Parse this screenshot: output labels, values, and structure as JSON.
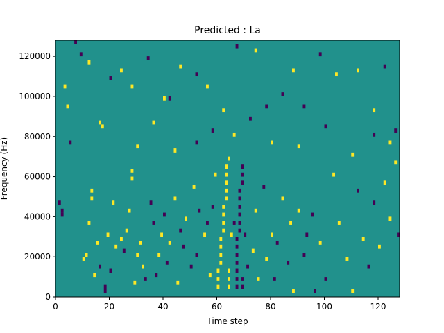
{
  "chart_data": {
    "type": "heatmap",
    "title": "Predicted : La",
    "xlabel": "Time step",
    "ylabel": "Frequency (Hz)",
    "xlim": [
      0,
      128
    ],
    "ylim": [
      0,
      128000
    ],
    "grid": false,
    "x_ticks": [
      0,
      20,
      40,
      60,
      80,
      100,
      120
    ],
    "y_ticks": [
      0,
      20000,
      40000,
      60000,
      80000,
      100000,
      120000
    ],
    "x_tick_labels": [
      "0",
      "20",
      "40",
      "60",
      "80",
      "100",
      "120"
    ],
    "y_tick_labels": [
      "0",
      "20000",
      "40000",
      "60000",
      "80000",
      "100000",
      "120000"
    ],
    "colormap": {
      "background": "#21918c",
      "high": "#fde725",
      "low": "#440154"
    },
    "frequency_bin_hz": 2000,
    "cells": [
      {
        "t": 1,
        "f": 46000,
        "v": "low"
      },
      {
        "t": 2,
        "f": 42000,
        "v": "low"
      },
      {
        "t": 2,
        "f": 40000,
        "v": "low"
      },
      {
        "t": 3,
        "f": 104000,
        "v": "high"
      },
      {
        "t": 4,
        "f": 94000,
        "v": "high"
      },
      {
        "t": 5,
        "f": 76000,
        "v": "low"
      },
      {
        "t": 7,
        "f": 126000,
        "v": "low"
      },
      {
        "t": 10,
        "f": 18000,
        "v": "high"
      },
      {
        "t": 11,
        "f": 20000,
        "v": "high"
      },
      {
        "t": 12,
        "f": 36000,
        "v": "high"
      },
      {
        "t": 13,
        "f": 52000,
        "v": "high"
      },
      {
        "t": 13,
        "f": 48000,
        "v": "high"
      },
      {
        "t": 14,
        "f": 10000,
        "v": "high"
      },
      {
        "t": 15,
        "f": 26000,
        "v": "high"
      },
      {
        "t": 16,
        "f": 14000,
        "v": "low"
      },
      {
        "t": 17,
        "f": 84000,
        "v": "high"
      },
      {
        "t": 18,
        "f": 2000,
        "v": "low"
      },
      {
        "t": 18,
        "f": 4000,
        "v": "low"
      },
      {
        "t": 19,
        "f": 30000,
        "v": "high"
      },
      {
        "t": 20,
        "f": 12000,
        "v": "low"
      },
      {
        "t": 21,
        "f": 46000,
        "v": "high"
      },
      {
        "t": 22,
        "f": 24000,
        "v": "high"
      },
      {
        "t": 24,
        "f": 28000,
        "v": "high"
      },
      {
        "t": 25,
        "f": 22000,
        "v": "low"
      },
      {
        "t": 26,
        "f": 32000,
        "v": "high"
      },
      {
        "t": 27,
        "f": 42000,
        "v": "high"
      },
      {
        "t": 28,
        "f": 58000,
        "v": "high"
      },
      {
        "t": 28,
        "f": 62000,
        "v": "high"
      },
      {
        "t": 29,
        "f": 6000,
        "v": "high"
      },
      {
        "t": 30,
        "f": 20000,
        "v": "high"
      },
      {
        "t": 31,
        "f": 26000,
        "v": "high"
      },
      {
        "t": 32,
        "f": 14000,
        "v": "high"
      },
      {
        "t": 33,
        "f": 8000,
        "v": "low"
      },
      {
        "t": 35,
        "f": 46000,
        "v": "low"
      },
      {
        "t": 36,
        "f": 36000,
        "v": "low"
      },
      {
        "t": 37,
        "f": 10000,
        "v": "low"
      },
      {
        "t": 38,
        "f": 20000,
        "v": "high"
      },
      {
        "t": 39,
        "f": 30000,
        "v": "high"
      },
      {
        "t": 40,
        "f": 40000,
        "v": "low"
      },
      {
        "t": 41,
        "f": 16000,
        "v": "low"
      },
      {
        "t": 42,
        "f": 26000,
        "v": "high"
      },
      {
        "t": 44,
        "f": 48000,
        "v": "high"
      },
      {
        "t": 45,
        "f": 6000,
        "v": "high"
      },
      {
        "t": 46,
        "f": 32000,
        "v": "low"
      },
      {
        "t": 47,
        "f": 24000,
        "v": "low"
      },
      {
        "t": 48,
        "f": 38000,
        "v": "high"
      },
      {
        "t": 50,
        "f": 14000,
        "v": "low"
      },
      {
        "t": 51,
        "f": 54000,
        "v": "high"
      },
      {
        "t": 52,
        "f": 20000,
        "v": "low"
      },
      {
        "t": 53,
        "f": 42000,
        "v": "low"
      },
      {
        "t": 55,
        "f": 30000,
        "v": "high"
      },
      {
        "t": 56,
        "f": 36000,
        "v": "low"
      },
      {
        "t": 57,
        "f": 10000,
        "v": "high"
      },
      {
        "t": 58,
        "f": 44000,
        "v": "low"
      },
      {
        "t": 59,
        "f": 60000,
        "v": "high"
      },
      {
        "t": 60,
        "f": 4000,
        "v": "high"
      },
      {
        "t": 60,
        "f": 8000,
        "v": "high"
      },
      {
        "t": 60,
        "f": 12000,
        "v": "high"
      },
      {
        "t": 61,
        "f": 16000,
        "v": "high"
      },
      {
        "t": 61,
        "f": 20000,
        "v": "high"
      },
      {
        "t": 61,
        "f": 24000,
        "v": "high"
      },
      {
        "t": 61,
        "f": 28000,
        "v": "high"
      },
      {
        "t": 62,
        "f": 32000,
        "v": "high"
      },
      {
        "t": 62,
        "f": 36000,
        "v": "high"
      },
      {
        "t": 62,
        "f": 40000,
        "v": "high"
      },
      {
        "t": 62,
        "f": 44000,
        "v": "high"
      },
      {
        "t": 63,
        "f": 48000,
        "v": "high"
      },
      {
        "t": 63,
        "f": 52000,
        "v": "high"
      },
      {
        "t": 63,
        "f": 56000,
        "v": "high"
      },
      {
        "t": 63,
        "f": 60000,
        "v": "high"
      },
      {
        "t": 63,
        "f": 64000,
        "v": "high"
      },
      {
        "t": 64,
        "f": 68000,
        "v": "high"
      },
      {
        "t": 64,
        "f": 4000,
        "v": "high"
      },
      {
        "t": 64,
        "f": 8000,
        "v": "high"
      },
      {
        "t": 64,
        "f": 12000,
        "v": "high"
      },
      {
        "t": 65,
        "f": 30000,
        "v": "high"
      },
      {
        "t": 66,
        "f": 36000,
        "v": "low"
      },
      {
        "t": 67,
        "f": 4000,
        "v": "low"
      },
      {
        "t": 67,
        "f": 8000,
        "v": "low"
      },
      {
        "t": 67,
        "f": 12000,
        "v": "low"
      },
      {
        "t": 67,
        "f": 16000,
        "v": "low"
      },
      {
        "t": 67,
        "f": 20000,
        "v": "low"
      },
      {
        "t": 67,
        "f": 24000,
        "v": "low"
      },
      {
        "t": 67,
        "f": 28000,
        "v": "low"
      },
      {
        "t": 68,
        "f": 32000,
        "v": "low"
      },
      {
        "t": 68,
        "f": 36000,
        "v": "low"
      },
      {
        "t": 68,
        "f": 40000,
        "v": "low"
      },
      {
        "t": 68,
        "f": 44000,
        "v": "low"
      },
      {
        "t": 68,
        "f": 48000,
        "v": "low"
      },
      {
        "t": 68,
        "f": 52000,
        "v": "low"
      },
      {
        "t": 69,
        "f": 56000,
        "v": "low"
      },
      {
        "t": 69,
        "f": 60000,
        "v": "low"
      },
      {
        "t": 69,
        "f": 64000,
        "v": "low"
      },
      {
        "t": 69,
        "f": 4000,
        "v": "low"
      },
      {
        "t": 69,
        "f": 8000,
        "v": "low"
      },
      {
        "t": 70,
        "f": 30000,
        "v": "low"
      },
      {
        "t": 71,
        "f": 14000,
        "v": "low"
      },
      {
        "t": 73,
        "f": 22000,
        "v": "high"
      },
      {
        "t": 74,
        "f": 42000,
        "v": "high"
      },
      {
        "t": 75,
        "f": 8000,
        "v": "high"
      },
      {
        "t": 77,
        "f": 54000,
        "v": "low"
      },
      {
        "t": 78,
        "f": 18000,
        "v": "high"
      },
      {
        "t": 80,
        "f": 30000,
        "v": "high"
      },
      {
        "t": 81,
        "f": 8000,
        "v": "low"
      },
      {
        "t": 82,
        "f": 26000,
        "v": "low"
      },
      {
        "t": 84,
        "f": 48000,
        "v": "high"
      },
      {
        "t": 86,
        "f": 16000,
        "v": "low"
      },
      {
        "t": 87,
        "f": 36000,
        "v": "high"
      },
      {
        "t": 88,
        "f": 2000,
        "v": "high"
      },
      {
        "t": 90,
        "f": 42000,
        "v": "high"
      },
      {
        "t": 92,
        "f": 20000,
        "v": "low"
      },
      {
        "t": 93,
        "f": 30000,
        "v": "low"
      },
      {
        "t": 95,
        "f": 40000,
        "v": "low"
      },
      {
        "t": 96,
        "f": 2000,
        "v": "low"
      },
      {
        "t": 98,
        "f": 26000,
        "v": "high"
      },
      {
        "t": 100,
        "f": 8000,
        "v": "low"
      },
      {
        "t": 103,
        "f": 60000,
        "v": "high"
      },
      {
        "t": 105,
        "f": 36000,
        "v": "high"
      },
      {
        "t": 108,
        "f": 18000,
        "v": "high"
      },
      {
        "t": 110,
        "f": 2000,
        "v": "high"
      },
      {
        "t": 112,
        "f": 52000,
        "v": "low"
      },
      {
        "t": 114,
        "f": 28000,
        "v": "high"
      },
      {
        "t": 116,
        "f": 14000,
        "v": "low"
      },
      {
        "t": 118,
        "f": 46000,
        "v": "low"
      },
      {
        "t": 120,
        "f": 24000,
        "v": "high"
      },
      {
        "t": 122,
        "f": 56000,
        "v": "high"
      },
      {
        "t": 124,
        "f": 38000,
        "v": "high"
      },
      {
        "t": 126,
        "f": 66000,
        "v": "high"
      },
      {
        "t": 127,
        "f": 30000,
        "v": "low"
      },
      {
        "t": 9,
        "f": 120000,
        "v": "low"
      },
      {
        "t": 12,
        "f": 116000,
        "v": "high"
      },
      {
        "t": 20,
        "f": 108000,
        "v": "low"
      },
      {
        "t": 24,
        "f": 112000,
        "v": "high"
      },
      {
        "t": 28,
        "f": 104000,
        "v": "high"
      },
      {
        "t": 34,
        "f": 118000,
        "v": "low"
      },
      {
        "t": 40,
        "f": 98000,
        "v": "high"
      },
      {
        "t": 42,
        "f": 98000,
        "v": "low"
      },
      {
        "t": 46,
        "f": 114000,
        "v": "high"
      },
      {
        "t": 52,
        "f": 110000,
        "v": "low"
      },
      {
        "t": 56,
        "f": 104000,
        "v": "high"
      },
      {
        "t": 62,
        "f": 92000,
        "v": "high"
      },
      {
        "t": 67,
        "f": 124000,
        "v": "low"
      },
      {
        "t": 74,
        "f": 122000,
        "v": "high"
      },
      {
        "t": 78,
        "f": 94000,
        "v": "low"
      },
      {
        "t": 84,
        "f": 100000,
        "v": "low"
      },
      {
        "t": 88,
        "f": 112000,
        "v": "high"
      },
      {
        "t": 92,
        "f": 94000,
        "v": "low"
      },
      {
        "t": 98,
        "f": 120000,
        "v": "low"
      },
      {
        "t": 104,
        "f": 110000,
        "v": "high"
      },
      {
        "t": 112,
        "f": 112000,
        "v": "high"
      },
      {
        "t": 118,
        "f": 92000,
        "v": "high"
      },
      {
        "t": 122,
        "f": 114000,
        "v": "low"
      },
      {
        "t": 126,
        "f": 82000,
        "v": "low"
      },
      {
        "t": 16,
        "f": 86000,
        "v": "high"
      },
      {
        "t": 30,
        "f": 74000,
        "v": "high"
      },
      {
        "t": 36,
        "f": 86000,
        "v": "high"
      },
      {
        "t": 44,
        "f": 72000,
        "v": "high"
      },
      {
        "t": 52,
        "f": 76000,
        "v": "low"
      },
      {
        "t": 58,
        "f": 82000,
        "v": "low"
      },
      {
        "t": 66,
        "f": 80000,
        "v": "high"
      },
      {
        "t": 72,
        "f": 88000,
        "v": "low"
      },
      {
        "t": 80,
        "f": 76000,
        "v": "high"
      },
      {
        "t": 90,
        "f": 74000,
        "v": "high"
      },
      {
        "t": 100,
        "f": 84000,
        "v": "low"
      },
      {
        "t": 110,
        "f": 70000,
        "v": "high"
      },
      {
        "t": 118,
        "f": 80000,
        "v": "low"
      },
      {
        "t": 124,
        "f": 76000,
        "v": "high"
      }
    ]
  }
}
